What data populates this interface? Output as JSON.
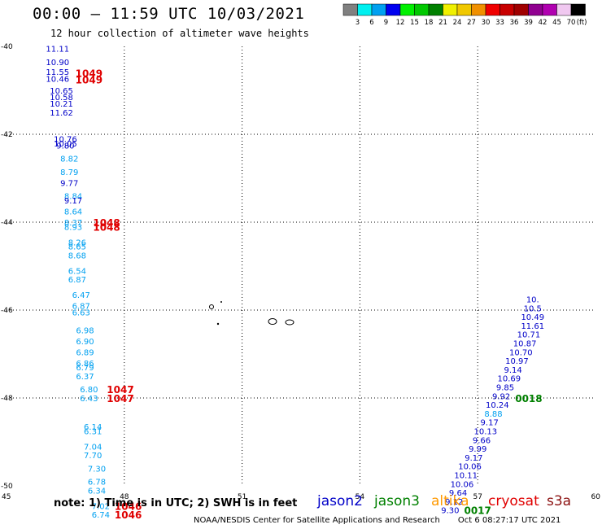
{
  "title": "00:00 – 11:59 UTC 10/03/2021",
  "subtitle": "12 hour collection of altimeter wave heights",
  "footer_note": "note: 1) Time is in UTC; 2) SWH is in feet",
  "credit": "NOAA/NESDIS Center for Satellite Applications and Research",
  "generated": "Oct  6 08:27:17 UTC 2021",
  "satellites": [
    {
      "name": "jason2",
      "color": "#0000c8"
    },
    {
      "name": "jason3",
      "color": "#008000"
    },
    {
      "name": "altika",
      "color": "#ff9900"
    },
    {
      "name": "cryosat",
      "color": "#e00000"
    },
    {
      "name": "s3a",
      "color": "#8b1010"
    }
  ],
  "colorbar": {
    "unit": "(ft)",
    "colors": [
      "#808080",
      "#00f0f0",
      "#00a0f0",
      "#0000f0",
      "#00f000",
      "#00c800",
      "#008000",
      "#f0f000",
      "#f0c800",
      "#f09000",
      "#f00000",
      "#c80000",
      "#a00000",
      "#900090",
      "#b000b0",
      "#f0c8f0",
      "#000000"
    ],
    "labels": [
      "3",
      "6",
      "9",
      "12",
      "15",
      "18",
      "21",
      "24",
      "27",
      "30",
      "33",
      "36",
      "39",
      "42",
      "45",
      "70"
    ]
  },
  "chart_data": {
    "type": "scatter",
    "title": "00:00 – 11:59 UTC 10/03/2021",
    "subtitle": "12 hour collection of altimeter wave heights",
    "xlim": [
      45,
      60
    ],
    "ylim": [
      -50,
      -40
    ],
    "xticks": [
      "45",
      "48",
      "51",
      "54",
      "57",
      "60"
    ],
    "yticks": [
      "-40",
      "-42",
      "-44",
      "-46",
      "-48",
      "-50"
    ],
    "grid": true,
    "wave_heights_ft": [
      {
        "x": 46.3,
        "y": -40.05,
        "v": "11.11",
        "color": "#0000c8"
      },
      {
        "x": 46.3,
        "y": -40.35,
        "v": "10.90",
        "color": "#0000c8"
      },
      {
        "x": 46.3,
        "y": -40.57,
        "v": "11.55",
        "color": "#0000c8"
      },
      {
        "x": 46.3,
        "y": -40.73,
        "v": "10.46",
        "color": "#0000c8"
      },
      {
        "x": 46.4,
        "y": -41.0,
        "v": "10.65",
        "color": "#0000c8"
      },
      {
        "x": 46.4,
        "y": -41.15,
        "v": "10.58",
        "color": "#0000c8"
      },
      {
        "x": 46.4,
        "y": -41.3,
        "v": "10.21",
        "color": "#0000c8"
      },
      {
        "x": 46.4,
        "y": -41.5,
        "v": "11.62",
        "color": "#0000c8"
      },
      {
        "x": 46.5,
        "y": -42.1,
        "v": "10.76",
        "color": "#0000c8"
      },
      {
        "x": 46.5,
        "y": -42.2,
        "v": "10.05",
        "color": "#0000c8"
      },
      {
        "x": 46.5,
        "y": -42.25,
        "v": "9.80",
        "color": "#0000c8"
      },
      {
        "x": 46.6,
        "y": -42.55,
        "v": "8.82",
        "color": "#00a0f0"
      },
      {
        "x": 46.6,
        "y": -42.85,
        "v": "8.79",
        "color": "#00a0f0"
      },
      {
        "x": 46.6,
        "y": -43.1,
        "v": "9.77",
        "color": "#0000c8"
      },
      {
        "x": 46.7,
        "y": -43.4,
        "v": "8.84",
        "color": "#00a0f0"
      },
      {
        "x": 46.7,
        "y": -43.5,
        "v": "9.17",
        "color": "#0000c8"
      },
      {
        "x": 46.7,
        "y": -43.75,
        "v": "8.64",
        "color": "#00a0f0"
      },
      {
        "x": 46.7,
        "y": -44.0,
        "v": "8.37",
        "color": "#00a0f0"
      },
      {
        "x": 46.7,
        "y": -44.1,
        "v": "8.93",
        "color": "#00a0f0"
      },
      {
        "x": 46.8,
        "y": -44.45,
        "v": "8.26",
        "color": "#00a0f0"
      },
      {
        "x": 46.8,
        "y": -44.55,
        "v": "8.65",
        "color": "#00a0f0"
      },
      {
        "x": 46.8,
        "y": -44.75,
        "v": "8.68",
        "color": "#00a0f0"
      },
      {
        "x": 46.8,
        "y": -45.1,
        "v": "6.54",
        "color": "#00a0f0"
      },
      {
        "x": 46.8,
        "y": -45.3,
        "v": "6.87",
        "color": "#00a0f0"
      },
      {
        "x": 46.9,
        "y": -45.65,
        "v": "6.47",
        "color": "#00a0f0"
      },
      {
        "x": 46.9,
        "y": -45.9,
        "v": "6.87",
        "color": "#00a0f0"
      },
      {
        "x": 46.9,
        "y": -46.05,
        "v": "6.63",
        "color": "#00a0f0"
      },
      {
        "x": 47.0,
        "y": -46.45,
        "v": "6.98",
        "color": "#00a0f0"
      },
      {
        "x": 47.0,
        "y": -46.7,
        "v": "6.90",
        "color": "#00a0f0"
      },
      {
        "x": 47.0,
        "y": -46.95,
        "v": "6.89",
        "color": "#00a0f0"
      },
      {
        "x": 47.0,
        "y": -47.2,
        "v": "6.86",
        "color": "#00a0f0"
      },
      {
        "x": 47.0,
        "y": -47.3,
        "v": "6.79",
        "color": "#00a0f0"
      },
      {
        "x": 47.0,
        "y": -47.5,
        "v": "6.37",
        "color": "#00a0f0"
      },
      {
        "x": 47.1,
        "y": -47.8,
        "v": "6.80",
        "color": "#00a0f0"
      },
      {
        "x": 47.1,
        "y": -48.0,
        "v": "6.43",
        "color": "#00a0f0"
      },
      {
        "x": 47.2,
        "y": -48.65,
        "v": "6.14",
        "color": "#00a0f0"
      },
      {
        "x": 47.2,
        "y": -48.75,
        "v": "6.31",
        "color": "#00a0f0"
      },
      {
        "x": 47.2,
        "y": -49.1,
        "v": "7.04",
        "color": "#00a0f0"
      },
      {
        "x": 47.2,
        "y": -49.3,
        "v": "7.70",
        "color": "#00a0f0"
      },
      {
        "x": 47.3,
        "y": -49.6,
        "v": "7.30",
        "color": "#00a0f0"
      },
      {
        "x": 47.3,
        "y": -49.9,
        "v": "6.78",
        "color": "#00a0f0"
      },
      {
        "x": 47.3,
        "y": -50.1,
        "v": "6.34",
        "color": "#00a0f0"
      },
      {
        "x": 47.4,
        "y": -50.45,
        "v": "7.02",
        "color": "#00a0f0"
      },
      {
        "x": 47.4,
        "y": -50.65,
        "v": "6.74",
        "color": "#00a0f0"
      },
      {
        "x": 58.4,
        "y": -45.75,
        "v": "10.",
        "color": "#0000c8"
      },
      {
        "x": 58.4,
        "y": -45.95,
        "v": "10.5",
        "color": "#0000c8"
      },
      {
        "x": 58.4,
        "y": -46.15,
        "v": "10.49",
        "color": "#0000c8"
      },
      {
        "x": 58.4,
        "y": -46.35,
        "v": "11.61",
        "color": "#0000c8"
      },
      {
        "x": 58.3,
        "y": -46.55,
        "v": "10.71",
        "color": "#0000c8"
      },
      {
        "x": 58.2,
        "y": -46.75,
        "v": "10.87",
        "color": "#0000c8"
      },
      {
        "x": 58.1,
        "y": -46.95,
        "v": "10.70",
        "color": "#0000c8"
      },
      {
        "x": 58.0,
        "y": -47.15,
        "v": "10.97",
        "color": "#0000c8"
      },
      {
        "x": 57.9,
        "y": -47.35,
        "v": "9.14",
        "color": "#0000c8"
      },
      {
        "x": 57.8,
        "y": -47.55,
        "v": "10.69",
        "color": "#0000c8"
      },
      {
        "x": 57.7,
        "y": -47.75,
        "v": "9.85",
        "color": "#0000c8"
      },
      {
        "x": 57.6,
        "y": -47.95,
        "v": "9.92",
        "color": "#0000c8"
      },
      {
        "x": 57.5,
        "y": -48.15,
        "v": "10.24",
        "color": "#0000c8"
      },
      {
        "x": 57.4,
        "y": -48.35,
        "v": "8.88",
        "color": "#00a0f0"
      },
      {
        "x": 57.3,
        "y": -48.55,
        "v": "9.17",
        "color": "#0000c8"
      },
      {
        "x": 57.2,
        "y": -48.75,
        "v": "10.13",
        "color": "#0000c8"
      },
      {
        "x": 57.1,
        "y": -48.95,
        "v": "9.66",
        "color": "#0000c8"
      },
      {
        "x": 57.0,
        "y": -49.15,
        "v": "9.99",
        "color": "#0000c8"
      },
      {
        "x": 56.9,
        "y": -49.35,
        "v": "9.17",
        "color": "#0000c8"
      },
      {
        "x": 56.8,
        "y": -49.55,
        "v": "10.06",
        "color": "#0000c8"
      },
      {
        "x": 56.7,
        "y": -49.75,
        "v": "10.11",
        "color": "#0000c8"
      },
      {
        "x": 56.6,
        "y": -49.95,
        "v": "10.06",
        "color": "#0000c8"
      },
      {
        "x": 56.5,
        "y": -50.15,
        "v": "9.64",
        "color": "#0000c8"
      },
      {
        "x": 56.4,
        "y": -50.35,
        "v": "9.12",
        "color": "#0000c8"
      },
      {
        "x": 56.3,
        "y": -50.55,
        "v": "9.30",
        "color": "#0000c8"
      }
    ],
    "time_labels": [
      {
        "x": 47.1,
        "y": -40.6,
        "v": "1049",
        "color": "#e00000"
      },
      {
        "x": 47.1,
        "y": -40.75,
        "v": "1049",
        "color": "#e00000"
      },
      {
        "x": 47.55,
        "y": -44.0,
        "v": "1048",
        "color": "#e00000"
      },
      {
        "x": 47.55,
        "y": -44.1,
        "v": "1048",
        "color": "#e00000"
      },
      {
        "x": 47.9,
        "y": -47.8,
        "v": "1047",
        "color": "#e00000"
      },
      {
        "x": 47.9,
        "y": -48.0,
        "v": "1047",
        "color": "#e00000"
      },
      {
        "x": 48.1,
        "y": -50.45,
        "v": "1046",
        "color": "#e00000"
      },
      {
        "x": 48.1,
        "y": -50.65,
        "v": "1046",
        "color": "#e00000"
      },
      {
        "x": 58.3,
        "y": -48.0,
        "v": "0018",
        "color": "#008000"
      },
      {
        "x": 57.0,
        "y": -50.55,
        "v": "0017",
        "color": "#008000"
      }
    ]
  }
}
